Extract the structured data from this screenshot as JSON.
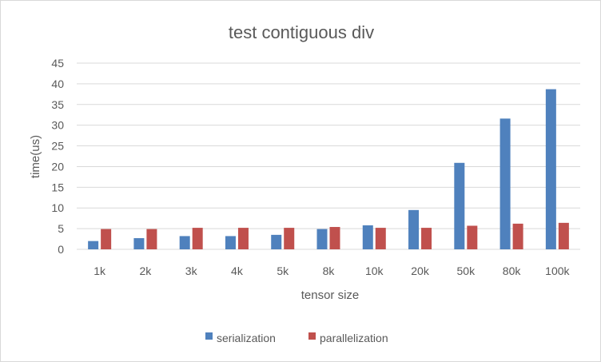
{
  "chart_data": {
    "type": "bar",
    "title": "test contiguous div",
    "xlabel": "tensor size",
    "ylabel": "time(us)",
    "categories": [
      "1k",
      "2k",
      "3k",
      "4k",
      "5k",
      "8k",
      "10k",
      "20k",
      "50k",
      "80k",
      "100k"
    ],
    "series": [
      {
        "name": "serialization",
        "color": "#4f81bd",
        "values": [
          2.0,
          2.7,
          3.2,
          3.2,
          3.5,
          4.9,
          5.8,
          9.5,
          20.9,
          31.6,
          38.7
        ]
      },
      {
        "name": "parallelization",
        "color": "#c0504d",
        "values": [
          4.9,
          4.9,
          5.2,
          5.2,
          5.2,
          5.4,
          5.2,
          5.2,
          5.7,
          6.2,
          6.4
        ]
      }
    ],
    "ylim": [
      0,
      45
    ],
    "yticks": [
      0,
      5,
      10,
      15,
      20,
      25,
      30,
      35,
      40,
      45
    ],
    "grid": true,
    "legend_position": "bottom"
  }
}
